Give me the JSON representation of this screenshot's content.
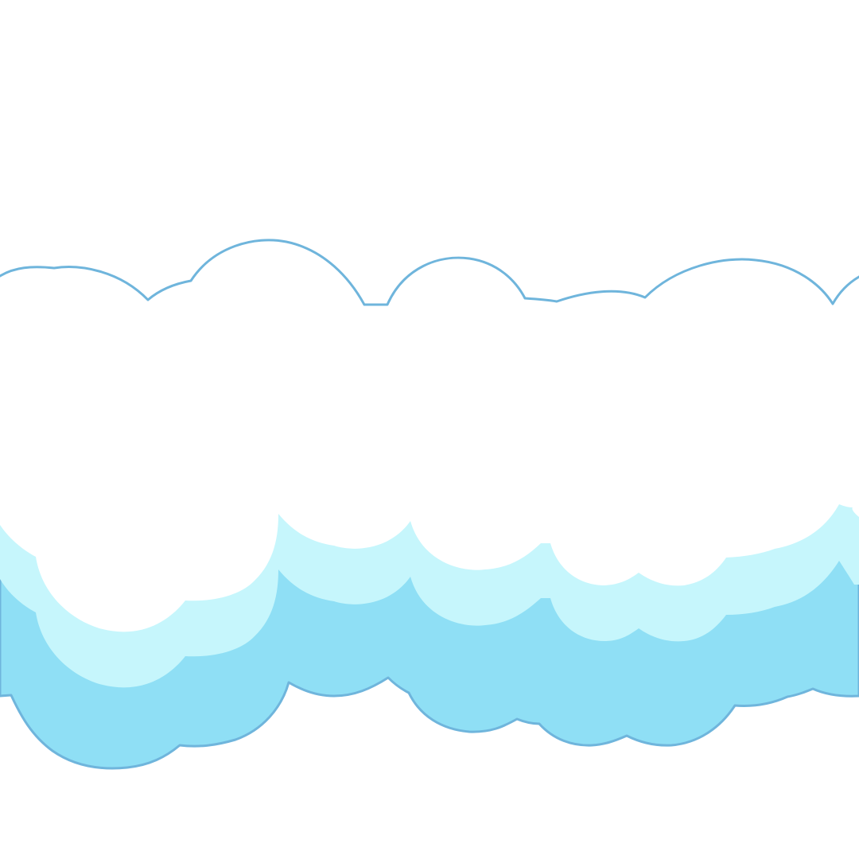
{
  "scene": {
    "subject": "cloud-bank",
    "layers": [
      "dark-blue-base",
      "light-blue-middle",
      "white-top"
    ]
  },
  "colors": {
    "background": "#ffffff",
    "outline": "#6fb5dc",
    "dark_blue": "#8fdff5",
    "light_blue": "#c6f6fc",
    "white": "#ffffff"
  }
}
